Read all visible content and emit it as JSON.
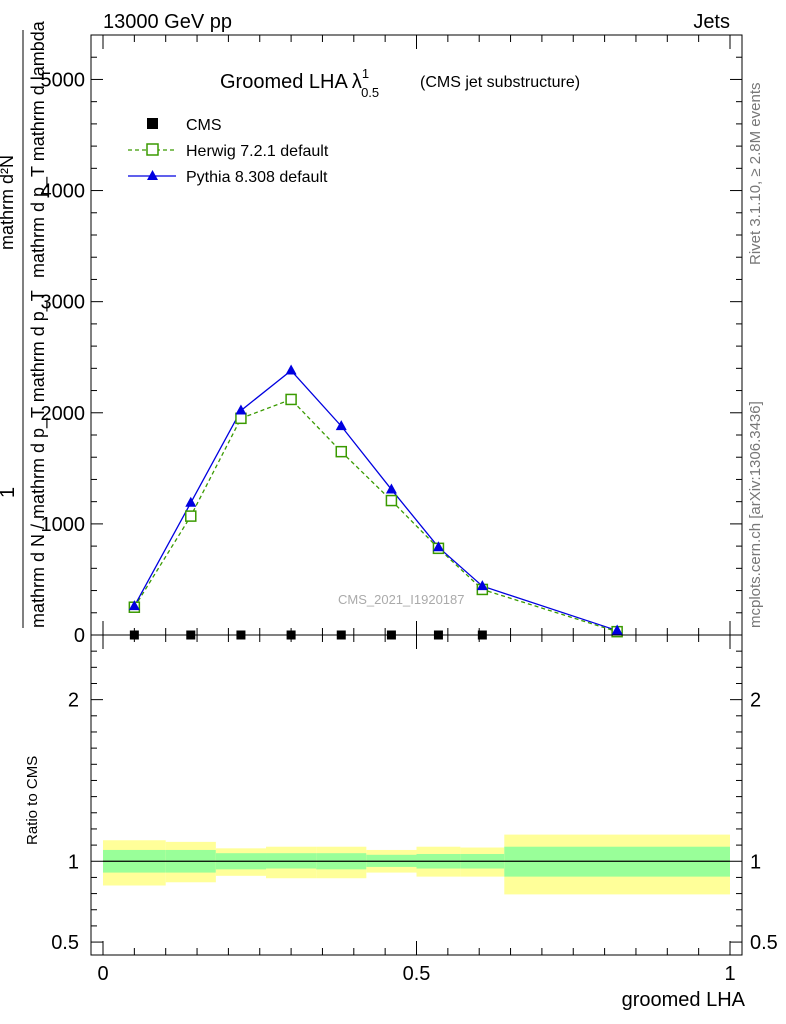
{
  "header": {
    "energy_label": "13000 GeV pp",
    "process_label": "Jets"
  },
  "side_labels": {
    "rivet": "Rivet 3.1.10, ≥ 2.8M events",
    "mcplots": "mcplots.cern.ch [arXiv:1306.3436]"
  },
  "chart_data": [
    {
      "type": "line",
      "title": "Groomed LHA",
      "title_symbol": "λ",
      "title_sup": "1",
      "title_sub": "0.5",
      "subtitle": "(CMS jet substructure)",
      "watermark": "CMS_2021_I1920187",
      "ylabel_numerator": "mathrm d²N",
      "ylabel_numerator_sub": "mathrm d p_T mathrm d lambda",
      "ylabel_one": "1",
      "ylabel_denominator": "mathrm d N / mathrm d p_T mathrm d p_T",
      "xlim": [
        0,
        1
      ],
      "ylim": [
        0,
        5400
      ],
      "yticks": [
        0,
        1000,
        2000,
        3000,
        4000,
        5000
      ],
      "ytick_labels": [
        "0",
        "1000",
        "2000",
        "3000",
        "4000",
        "5000"
      ],
      "legend_position": "top-left",
      "legend": [
        {
          "label": "CMS",
          "marker": "square-filled",
          "color": "#000000"
        },
        {
          "label": "Herwig 7.2.1 default",
          "marker": "square-open",
          "color": "#3a9a00",
          "dashed": true
        },
        {
          "label": "Pythia 8.308 default",
          "marker": "triangle",
          "color": "#0000e0"
        }
      ],
      "series": [
        {
          "name": "CMS",
          "x": [
            0.05,
            0.14,
            0.22,
            0.3,
            0.38,
            0.46,
            0.535,
            0.605
          ],
          "y": [
            0,
            0,
            0,
            0,
            0,
            0,
            0,
            0
          ],
          "color": "#000000"
        },
        {
          "name": "Herwig 7.2.1 default",
          "x": [
            0.05,
            0.14,
            0.22,
            0.3,
            0.38,
            0.46,
            0.535,
            0.605,
            0.82
          ],
          "y": [
            250,
            1070,
            1950,
            2120,
            1650,
            1210,
            780,
            410,
            30
          ],
          "color": "#3a9a00"
        },
        {
          "name": "Pythia 8.308 default",
          "x": [
            0.05,
            0.14,
            0.22,
            0.3,
            0.38,
            0.46,
            0.535,
            0.605,
            0.82
          ],
          "y": [
            260,
            1190,
            2020,
            2380,
            1880,
            1310,
            790,
            440,
            40
          ],
          "color": "#0000e0"
        }
      ]
    },
    {
      "type": "area",
      "ylabel": "Ratio to CMS",
      "xlabel": "groomed LHA",
      "xlim": [
        0,
        1
      ],
      "ylim": [
        0.42,
        2.4
      ],
      "xticks": [
        0,
        0.5,
        1
      ],
      "xtick_labels": [
        "0",
        "0.5",
        "1"
      ],
      "yticks": [
        0.5,
        1,
        2
      ],
      "ytick_labels": [
        "0.5",
        "1",
        "2"
      ],
      "bins": [
        {
          "x0": 0.0,
          "x1": 0.1,
          "inner": [
            0.93,
            1.07
          ],
          "outer": [
            0.85,
            1.13
          ]
        },
        {
          "x0": 0.1,
          "x1": 0.18,
          "inner": [
            0.93,
            1.07
          ],
          "outer": [
            0.87,
            1.12
          ]
        },
        {
          "x0": 0.18,
          "x1": 0.26,
          "inner": [
            0.95,
            1.05
          ],
          "outer": [
            0.91,
            1.08
          ]
        },
        {
          "x0": 0.26,
          "x1": 0.34,
          "inner": [
            0.955,
            1.05
          ],
          "outer": [
            0.895,
            1.09
          ]
        },
        {
          "x0": 0.34,
          "x1": 0.42,
          "inner": [
            0.95,
            1.05
          ],
          "outer": [
            0.895,
            1.09
          ]
        },
        {
          "x0": 0.42,
          "x1": 0.5,
          "inner": [
            0.965,
            1.04
          ],
          "outer": [
            0.93,
            1.07
          ]
        },
        {
          "x0": 0.5,
          "x1": 0.57,
          "inner": [
            0.955,
            1.045
          ],
          "outer": [
            0.905,
            1.09
          ]
        },
        {
          "x0": 0.57,
          "x1": 0.64,
          "inner": [
            0.955,
            1.045
          ],
          "outer": [
            0.905,
            1.085
          ]
        },
        {
          "x0": 0.64,
          "x1": 1.0,
          "inner": [
            0.905,
            1.09
          ],
          "outer": [
            0.795,
            1.165
          ]
        }
      ],
      "inner_color": "#99ff99",
      "outer_color": "#ffff99",
      "reference": 1
    }
  ]
}
